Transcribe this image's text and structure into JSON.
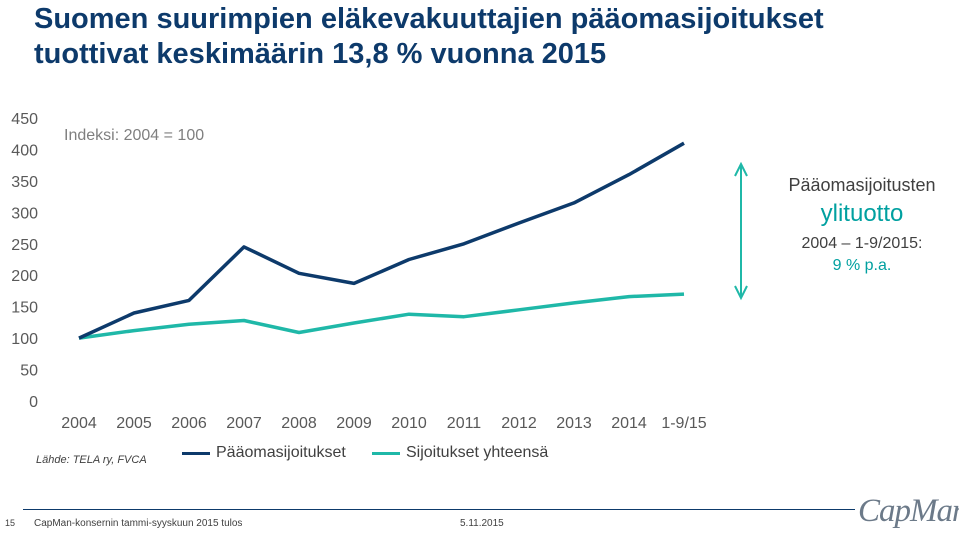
{
  "header": {
    "title_line1": "Suomen suurimpien eläkevakuuttajien pääomasijoitukset",
    "title_line2": "tuottivat keskimäärin 13,8 % vuonna 2015"
  },
  "chart_data": {
    "type": "line",
    "categories": [
      "2004",
      "2005",
      "2006",
      "2007",
      "2008",
      "2009",
      "2010",
      "2011",
      "2012",
      "2013",
      "2014",
      "1-9/15"
    ],
    "series": [
      {
        "name": "Pääomasijoitukset",
        "color": "#0d3a6b",
        "values": [
          100,
          140,
          160,
          245,
          203,
          187,
          225,
          250,
          283,
          315,
          360,
          410
        ]
      },
      {
        "name": "Sijoitukset yhteensä",
        "color": "#1fb8a8",
        "values": [
          100,
          112,
          122,
          128,
          109,
          124,
          138,
          134,
          145,
          156,
          166,
          170
        ]
      }
    ],
    "yticks": [
      0,
      50,
      100,
      150,
      200,
      250,
      300,
      350,
      400,
      450
    ],
    "ylim": [
      0,
      450
    ],
    "annotation": "Indeksi: 2004 = 100",
    "grid": false,
    "legend": "bottom"
  },
  "side_note": {
    "title": "Pääomasijoitusten",
    "big": "ylituotto",
    "range": "2004 – 1-9/2015:",
    "rate": "9 % p.a."
  },
  "source": "Lähde: TELA ry, FVCA",
  "footer": {
    "page_number": "15",
    "text": "CapMan-konsernin tammi-syyskuun 2015 tulos",
    "date": "5.11.2015",
    "logo": "CapMan"
  },
  "colors": {
    "title": "#0d3a6b",
    "accent": "#00a0a0",
    "arrow": "#1fb8a8"
  }
}
